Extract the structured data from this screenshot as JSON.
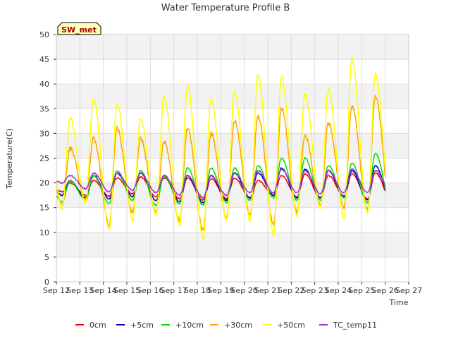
{
  "chart_data": {
    "type": "line",
    "title": "Water Temperature Profile B",
    "xlabel": "Time",
    "ylabel": "Temperature(C)",
    "annotation": "SW_met",
    "ylim": [
      0,
      50
    ],
    "yticks": [
      0,
      5,
      10,
      15,
      20,
      25,
      30,
      35,
      40,
      45,
      50
    ],
    "xlim": [
      "2024-09-12",
      "2024-09-27"
    ],
    "xticks": [
      "Sep 12",
      "Sep 13",
      "Sep 14",
      "Sep 15",
      "Sep 16",
      "Sep 17",
      "Sep 18",
      "Sep 19",
      "Sep 20",
      "Sep 21",
      "Sep 22",
      "Sep 23",
      "Sep 24",
      "Sep 25",
      "Sep 26",
      "Sep 27"
    ],
    "grid": true,
    "legend_position": "bottom",
    "peak_time_of_day": 0.58,
    "trough_time_of_day": 0.25,
    "series": [
      {
        "name": "0cm",
        "color": "#ff0000",
        "start": "2024-09-12",
        "end": "2024-09-26",
        "daily_min": [
          18.2,
          17.5,
          17.3,
          17.8,
          17.2,
          16.8,
          16.5,
          16.8,
          17.0,
          17.5,
          17.2,
          17.0,
          17.3,
          16.8
        ],
        "daily_max": [
          20.0,
          20.5,
          21.0,
          21.2,
          21.0,
          21.0,
          20.8,
          21.0,
          20.5,
          21.5,
          21.8,
          21.5,
          21.8,
          22.0
        ]
      },
      {
        "name": "+5cm",
        "color": "#0000cc",
        "start": "2024-09-12",
        "end": "2024-09-26",
        "daily_min": [
          17.5,
          17.0,
          16.8,
          17.2,
          16.5,
          16.2,
          16.0,
          16.5,
          17.0,
          17.5,
          17.0,
          17.0,
          17.2,
          16.5
        ],
        "daily_max": [
          20.5,
          21.5,
          22.0,
          22.0,
          21.5,
          21.5,
          21.5,
          22.0,
          22.0,
          23.0,
          22.8,
          22.5,
          22.5,
          23.5
        ]
      },
      {
        "name": "+10cm",
        "color": "#00dd00",
        "start": "2024-09-12",
        "end": "2024-09-26",
        "daily_min": [
          16.2,
          16.5,
          15.8,
          16.5,
          15.5,
          15.8,
          15.5,
          16.0,
          16.5,
          17.0,
          16.5,
          16.5,
          17.0,
          16.0
        ],
        "daily_max": [
          20.5,
          21.5,
          22.5,
          22.5,
          21.5,
          23.0,
          23.0,
          23.0,
          23.5,
          25.0,
          25.0,
          23.5,
          24.0,
          26.0
        ]
      },
      {
        "name": "+30cm",
        "color": "#ffa500",
        "start": "2024-09-12",
        "end": "2024-09-26",
        "daily_min": [
          15.5,
          16.5,
          11.5,
          14.0,
          14.0,
          12.5,
          10.5,
          13.0,
          13.5,
          11.5,
          14.0,
          15.5,
          15.0,
          14.5
        ],
        "daily_max": [
          27.0,
          29.0,
          31.0,
          29.0,
          28.5,
          31.0,
          30.0,
          32.5,
          33.5,
          35.0,
          29.5,
          32.0,
          35.5,
          37.5
        ]
      },
      {
        "name": "+50cm",
        "color": "#ffff00",
        "start": "2024-09-12",
        "end": "2024-09-26",
        "daily_min": [
          15.0,
          16.0,
          10.5,
          12.5,
          13.5,
          11.5,
          8.5,
          12.5,
          12.5,
          9.5,
          13.5,
          15.0,
          13.0,
          14.0
        ],
        "daily_max": [
          33.0,
          37.0,
          36.0,
          33.0,
          37.5,
          39.5,
          37.0,
          38.5,
          42.0,
          41.5,
          38.0,
          39.0,
          45.0,
          42.0
        ]
      },
      {
        "name": "TC_temp11",
        "color": "#9932cc",
        "start": "2024-09-12",
        "end": "2024-09-26",
        "daily_min": [
          20.0,
          18.8,
          18.2,
          18.5,
          18.0,
          17.5,
          17.0,
          17.5,
          18.0,
          18.0,
          18.0,
          17.8,
          18.0,
          18.0
        ],
        "daily_max": [
          21.5,
          22.0,
          22.0,
          22.0,
          21.5,
          21.5,
          21.5,
          22.0,
          22.5,
          22.8,
          22.5,
          22.5,
          22.8,
          22.5
        ]
      }
    ]
  }
}
